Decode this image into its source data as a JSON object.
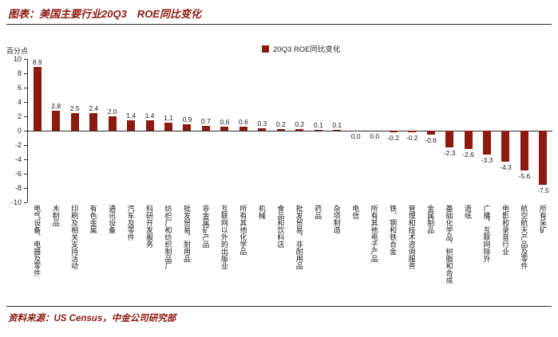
{
  "header": {
    "title": "图表：美国主要行业20Q3　ROE同比变化"
  },
  "footer": {
    "source": "资料来源：US Census，中金公司研究部"
  },
  "colors": {
    "accent": "#8C1A11",
    "text": "#262626",
    "divider": "#2B2B2B"
  },
  "chart_data": {
    "type": "bar",
    "title": "美国主要行业20Q3 ROE同比变化",
    "legend_label": "20Q3 ROE同比变化",
    "legend_position": "top-center",
    "ylabel": "百分点",
    "ylim": [
      -10,
      10
    ],
    "yticks": [
      10,
      8,
      6,
      4,
      2,
      0,
      -2,
      -4,
      -6,
      -8,
      -10
    ],
    "grid": false,
    "bar_color": "#8C1A11",
    "categories": [
      "电气设备、电器及零件",
      "木制品",
      "印刷及相关支持活动",
      "有色金属",
      "通讯设备",
      "汽车及零件",
      "科研开发服务",
      "纺织厂和纺织制品厂",
      "批发贸易，耐用品",
      "非金属矿产品",
      "互联网以外的出版业",
      "所有其他化学品",
      "机械",
      "食品和饮料店",
      "批发贸易，非耐用品",
      "药品",
      "杂项制造",
      "电信",
      "所有其他电子产品",
      "铁、钢和铁合金",
      "管理和技术咨询服务",
      "金属制品",
      "基础化学品，树脂和合成",
      "造纸",
      "广播，互联网除外",
      "电影和录音行业",
      "航空航天产品及零件",
      "所有采矿"
    ],
    "values": [
      8.9,
      2.8,
      2.5,
      2.4,
      2.0,
      1.4,
      1.4,
      1.1,
      0.9,
      0.7,
      0.6,
      0.6,
      0.3,
      0.2,
      0.2,
      0.1,
      0.1,
      0.0,
      0.0,
      -0.2,
      -0.2,
      -0.6,
      -2.3,
      -2.6,
      -3.3,
      -4.3,
      -5.6,
      -7.5
    ]
  }
}
